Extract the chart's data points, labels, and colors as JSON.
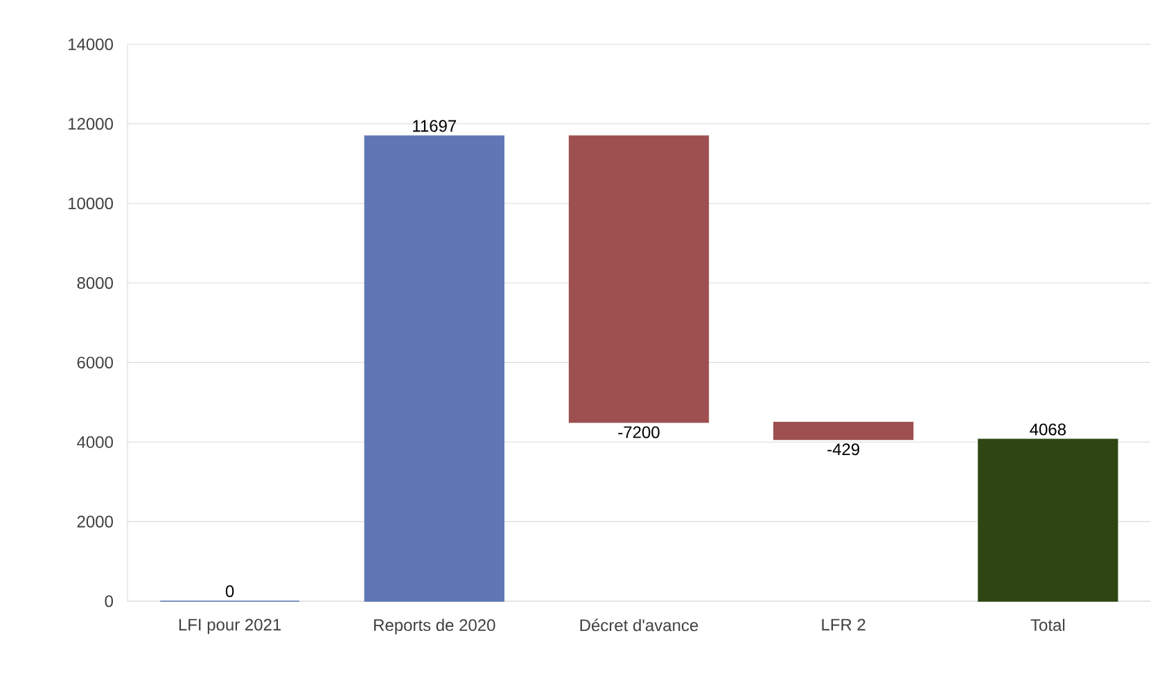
{
  "chart_data": {
    "type": "bar",
    "categories": [
      "LFI pour 2021",
      "Reports de 2020",
      "Décret d'avance",
      "LFR 2",
      "Total"
    ],
    "values": [
      0,
      11697,
      -7200,
      -429,
      4068
    ],
    "base": [
      null,
      null,
      11697,
      4497,
      null
    ],
    "colors": [
      "#5f77b5",
      "#5f77b5",
      "#9e5050",
      "#9e5050",
      "#2f4614"
    ],
    "ylim": [
      0,
      14000
    ],
    "yticks": [
      0,
      2000,
      4000,
      6000,
      8000,
      10000,
      12000,
      14000
    ],
    "grid": "y",
    "data_labels": true
  }
}
